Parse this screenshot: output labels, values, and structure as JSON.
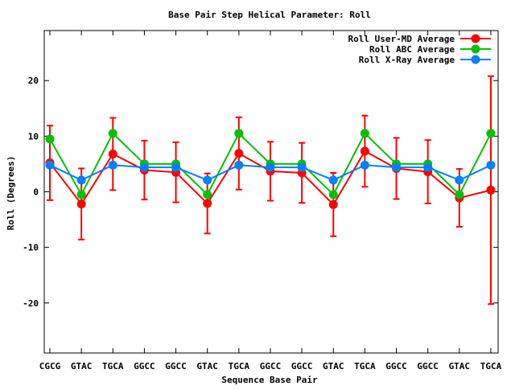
{
  "chart_data": {
    "type": "line",
    "title": "Base Pair Step Helical Parameter: Roll",
    "xlabel": "Sequence Base Pair",
    "ylabel": "Roll (Degrees)",
    "categories": [
      "CGCG",
      "GTAC",
      "TGCA",
      "GGCC",
      "GGCC",
      "GTAC",
      "TGCA",
      "GGCC",
      "GGCC",
      "GTAC",
      "TGCA",
      "GGCC",
      "GGCC",
      "GTAC",
      "TGCA"
    ],
    "ylim": [
      -29,
      29
    ],
    "yticks": [
      -20,
      -10,
      0,
      10,
      20
    ],
    "ytick_labels": [
      "-20",
      "-10",
      "0",
      "10",
      "20"
    ],
    "grid": false,
    "legend_position": "top-right",
    "series": [
      {
        "name": "Roll User-MD Average",
        "color": "#ff0000",
        "values": [
          5.2,
          -2.2,
          6.8,
          3.9,
          3.5,
          -2.1,
          6.9,
          3.7,
          3.4,
          -2.3,
          7.3,
          4.2,
          3.6,
          -1.1,
          0.3
        ],
        "error": [
          6.7,
          6.4,
          6.5,
          5.3,
          5.4,
          5.4,
          6.5,
          5.3,
          5.4,
          5.7,
          6.4,
          5.5,
          5.7,
          5.2,
          20.5
        ]
      },
      {
        "name": "Roll ABC Average",
        "color": "#00c000",
        "values": [
          9.5,
          -0.5,
          10.5,
          5.0,
          5.0,
          -0.5,
          10.5,
          5.0,
          5.0,
          -0.5,
          10.5,
          5.0,
          5.0,
          -0.5,
          10.5
        ]
      },
      {
        "name": "Roll X-Ray Average",
        "color": "#0080ff",
        "values": [
          4.8,
          2.1,
          4.8,
          4.4,
          4.4,
          2.1,
          4.8,
          4.4,
          4.4,
          2.1,
          4.8,
          4.4,
          4.4,
          2.1,
          4.8
        ]
      }
    ]
  }
}
